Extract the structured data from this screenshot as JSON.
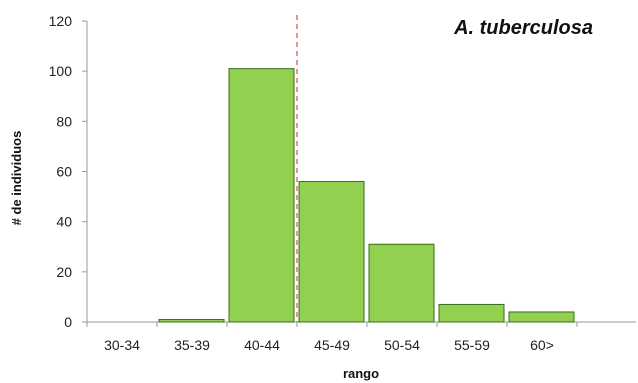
{
  "chart_data": {
    "type": "bar",
    "title": "A. tuberculosa",
    "xlabel": "rango",
    "ylabel": "# de individuos",
    "categories": [
      "30-34",
      "35-39",
      "40-44",
      "45-49",
      "50-54",
      "55-59",
      "60>"
    ],
    "values": [
      0,
      1,
      101,
      56,
      31,
      7,
      4
    ],
    "ylim": [
      0,
      120
    ],
    "yticks": [
      0,
      20,
      40,
      60,
      80,
      100,
      120
    ],
    "grid": false,
    "legend": "none",
    "reference_line": {
      "x_between": [
        "40-44",
        "45-49"
      ],
      "style": "dashed",
      "color": "#d62728"
    },
    "colors": {
      "bar_fill": "#92d050",
      "bar_stroke": "#3a6b1a",
      "axis": "#9a9a9a"
    }
  }
}
